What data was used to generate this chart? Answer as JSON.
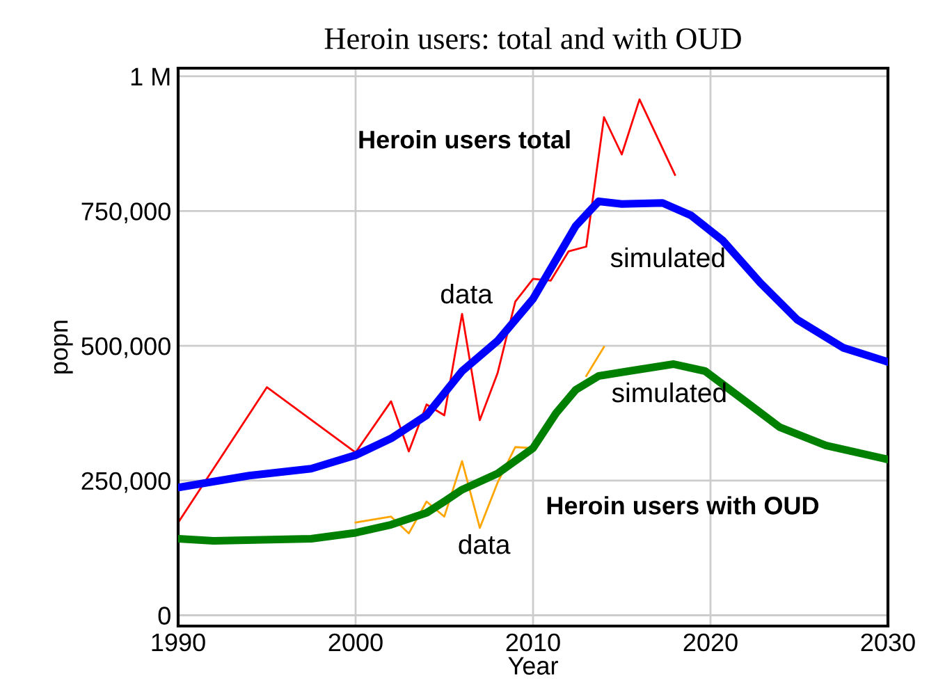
{
  "chart_data": {
    "type": "line",
    "title": "Heroin users: total and with OUD",
    "xlabel": "Year",
    "ylabel": "popn",
    "xlim": [
      1990,
      2030
    ],
    "xticks": [
      1990,
      2000,
      2010,
      2020,
      2030
    ],
    "ylim": [
      -20000,
      1015000
    ],
    "yticks": [
      0,
      {
        "value": 250000,
        "label": "250,000"
      },
      {
        "value": 500000,
        "label": "500,000"
      },
      {
        "value": 750000,
        "label": "750,000"
      },
      {
        "value": 1000000,
        "label": "1 M"
      }
    ],
    "grid": true,
    "legend": false,
    "line_style": "solid",
    "marker": "none",
    "series": [
      {
        "color": "#0000ff",
        "x": [
          1990,
          1994,
          1997.5,
          2000,
          2002,
          2004,
          2006,
          2008,
          2010,
          2011.3,
          2012.4,
          2013.7,
          2015,
          2017.3,
          2018.9,
          2020.7,
          2022.8,
          2024.9,
          2027.5,
          2030
        ],
        "values": [
          237000,
          259000,
          272000,
          297000,
          328000,
          371000,
          453000,
          509000,
          587000,
          660000,
          722000,
          768000,
          763000,
          765000,
          742000,
          695000,
          617000,
          548000,
          496000,
          470000
        ]
      },
      {
        "color": "#008000",
        "x": [
          1990,
          1992,
          1997.5,
          2000,
          2002,
          2004,
          2005,
          2006,
          2008,
          2010,
          2011.3,
          2012.4,
          2013.7,
          2015.4,
          2017.9,
          2019.7,
          2021.8,
          2023.9,
          2026.5,
          2030
        ],
        "values": [
          142000,
          138000,
          142000,
          153000,
          168000,
          190000,
          211000,
          233000,
          263000,
          310000,
          375000,
          418000,
          444000,
          453000,
          466000,
          453000,
          401000,
          349000,
          315000,
          289000
        ]
      },
      {
        "color": "#ff0000",
        "x": [
          1990,
          1995,
          2000,
          2002,
          2003,
          2004,
          2005,
          2006,
          2007,
          2008,
          2009,
          2010,
          2011,
          2012,
          2013,
          2014,
          2015,
          2016,
          2018
        ],
        "values": [
          172000,
          423000,
          302000,
          397000,
          304000,
          391000,
          371000,
          559000,
          362000,
          449000,
          582000,
          624000,
          621000,
          675000,
          684000,
          924000,
          855000,
          957000,
          817000
        ]
      },
      {
        "color": "#ffa500",
        "x": [
          2000,
          2002,
          2003,
          2004,
          2005,
          2006,
          2007,
          2008,
          2009,
          2010,
          2011,
          2012,
          2013,
          2014
        ],
        "values": [
          172000,
          183000,
          152000,
          211000,
          183000,
          286000,
          162000,
          246000,
          312000,
          310000,
          null,
          null,
          444000,
          498000
        ]
      }
    ],
    "annotations": [
      "Heroin users total",
      "data",
      "simulated",
      "simulated",
      "Heroin users with OUD",
      "data"
    ]
  }
}
